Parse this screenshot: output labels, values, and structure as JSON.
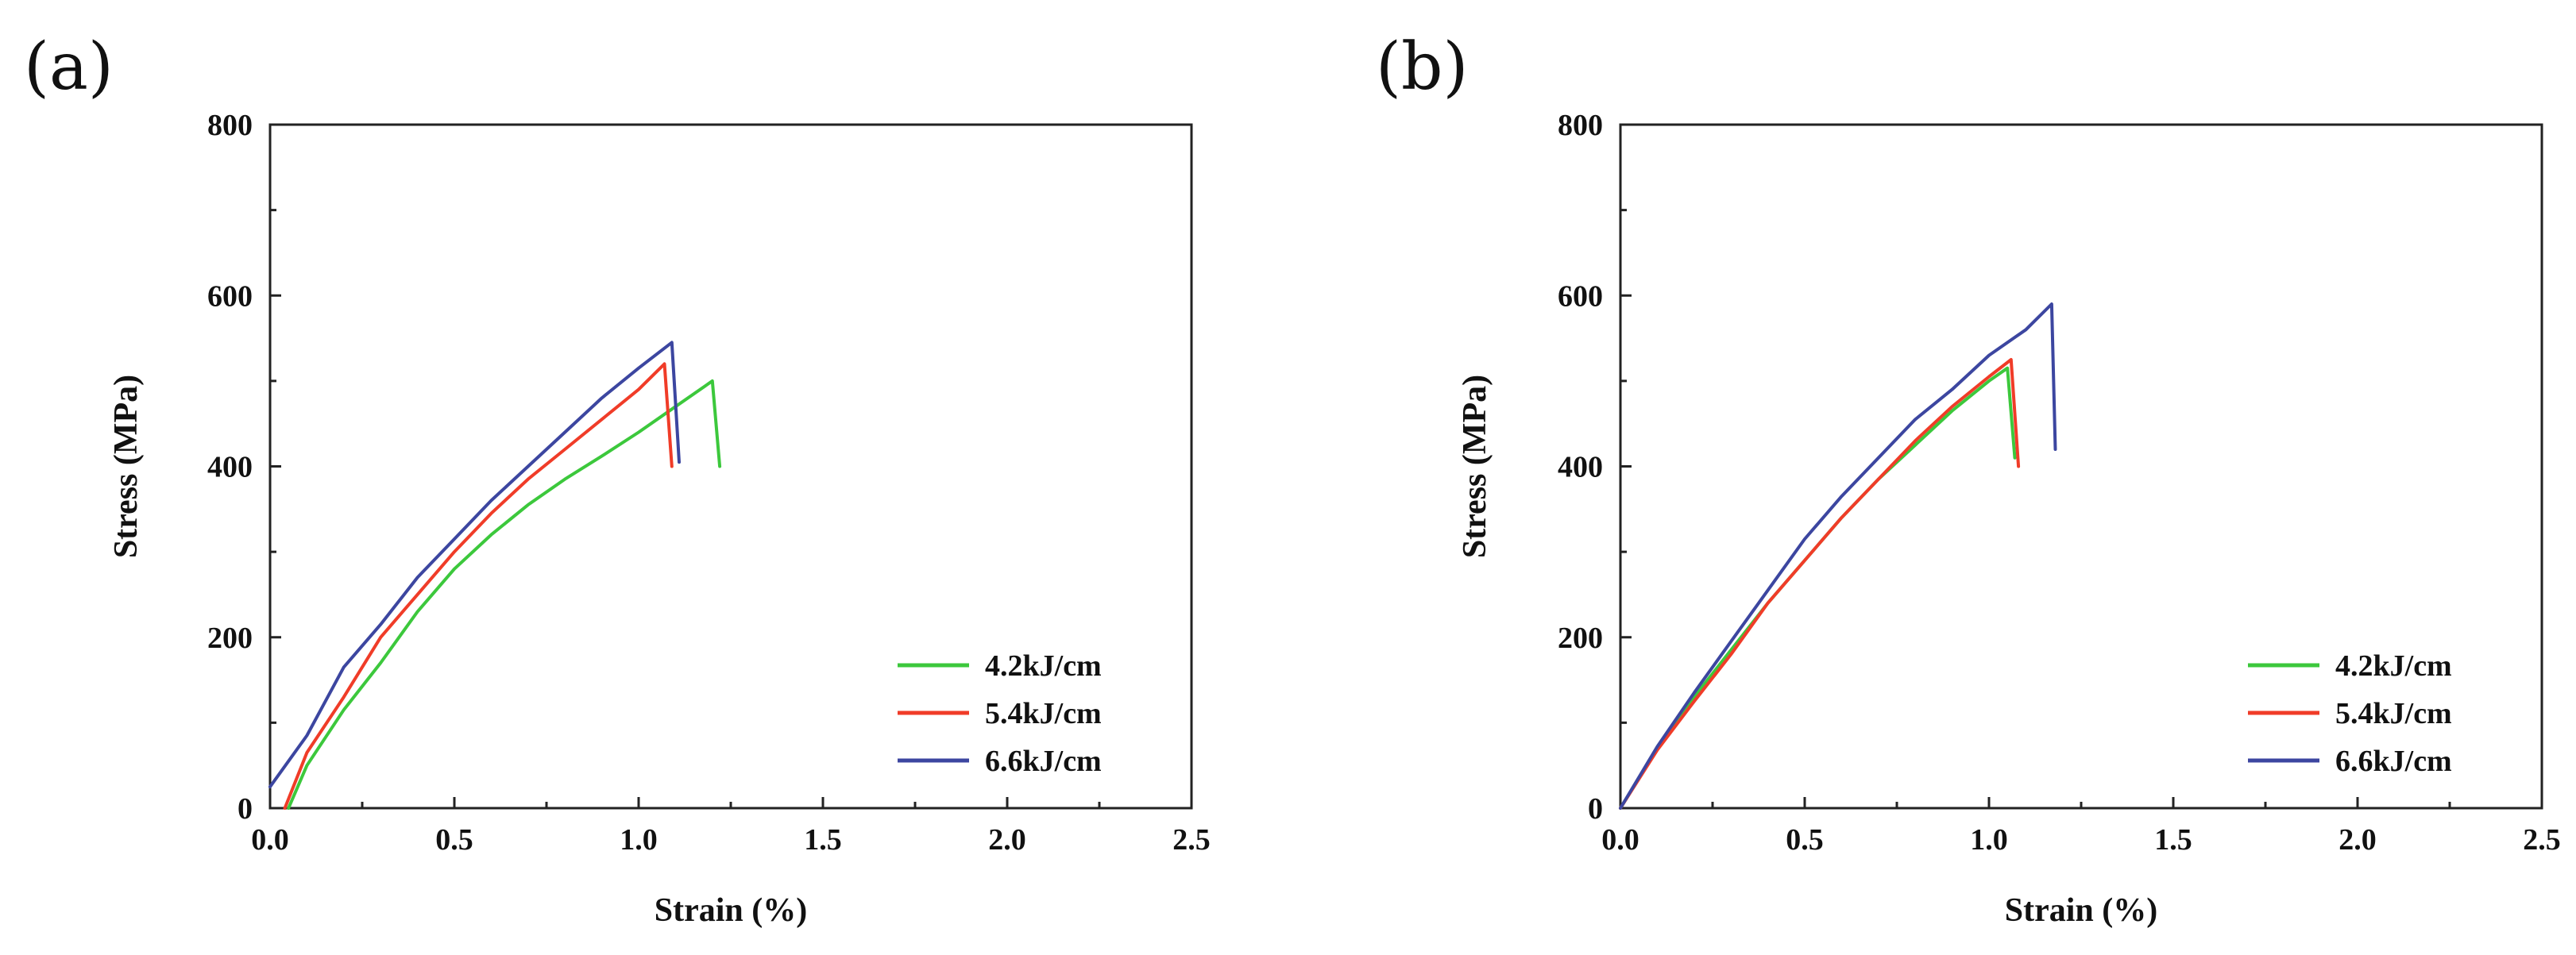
{
  "chart_data": [
    {
      "type": "line",
      "panel_label": "(a)",
      "xlabel": "Strain (%)",
      "ylabel": "Stress (MPa)",
      "xlim": [
        0.0,
        2.5
      ],
      "ylim": [
        0,
        800
      ],
      "xticks": [
        "0.0",
        "0.5",
        "1.0",
        "1.5",
        "2.0",
        "2.5"
      ],
      "yticks": [
        "0",
        "200",
        "400",
        "600",
        "800"
      ],
      "legend_position": "bottom-right",
      "series": [
        {
          "name": "4.2kJ/cm",
          "color": "#3cc83c",
          "x": [
            0.05,
            0.1,
            0.2,
            0.3,
            0.4,
            0.5,
            0.6,
            0.7,
            0.8,
            0.9,
            1.0,
            1.1,
            1.2,
            1.22
          ],
          "y": [
            0,
            50,
            115,
            170,
            230,
            280,
            320,
            355,
            385,
            412,
            440,
            470,
            500,
            400
          ]
        },
        {
          "name": "5.4kJ/cm",
          "color": "#f03c28",
          "x": [
            0.04,
            0.1,
            0.2,
            0.3,
            0.4,
            0.5,
            0.6,
            0.7,
            0.8,
            0.9,
            1.0,
            1.07,
            1.09
          ],
          "y": [
            0,
            65,
            130,
            200,
            250,
            300,
            345,
            385,
            420,
            455,
            490,
            520,
            400
          ]
        },
        {
          "name": "6.6kJ/cm",
          "color": "#3c46a0",
          "x": [
            0.0,
            0.05,
            0.1,
            0.2,
            0.3,
            0.4,
            0.5,
            0.6,
            0.7,
            0.8,
            0.9,
            1.0,
            1.09,
            1.11
          ],
          "y": [
            25,
            55,
            85,
            165,
            215,
            270,
            315,
            360,
            400,
            440,
            480,
            515,
            545,
            405
          ]
        }
      ]
    },
    {
      "type": "line",
      "panel_label": "(b)",
      "xlabel": "Strain (%)",
      "ylabel": "Stress (MPa)",
      "xlim": [
        0.0,
        2.5
      ],
      "ylim": [
        0,
        800
      ],
      "xticks": [
        "0.0",
        "0.5",
        "1.0",
        "1.5",
        "2.0",
        "2.5"
      ],
      "yticks": [
        "0",
        "200",
        "400",
        "600",
        "800"
      ],
      "legend_position": "bottom-right",
      "series": [
        {
          "name": "4.2kJ/cm",
          "color": "#3cc83c",
          "x": [
            0.0,
            0.1,
            0.2,
            0.3,
            0.4,
            0.5,
            0.6,
            0.7,
            0.8,
            0.9,
            1.0,
            1.05,
            1.07
          ],
          "y": [
            0,
            70,
            130,
            185,
            240,
            290,
            340,
            385,
            425,
            465,
            500,
            515,
            410
          ]
        },
        {
          "name": "5.4kJ/cm",
          "color": "#f03c28",
          "x": [
            0.0,
            0.1,
            0.2,
            0.3,
            0.4,
            0.5,
            0.6,
            0.7,
            0.8,
            0.9,
            1.0,
            1.06,
            1.08
          ],
          "y": [
            0,
            68,
            125,
            180,
            240,
            290,
            340,
            385,
            430,
            470,
            505,
            525,
            400
          ]
        },
        {
          "name": "6.6kJ/cm",
          "color": "#3c46a0",
          "x": [
            0.0,
            0.1,
            0.2,
            0.3,
            0.4,
            0.5,
            0.6,
            0.7,
            0.8,
            0.9,
            1.0,
            1.1,
            1.17,
            1.18
          ],
          "y": [
            0,
            72,
            135,
            195,
            255,
            315,
            365,
            410,
            455,
            490,
            530,
            560,
            590,
            420
          ]
        }
      ]
    }
  ]
}
